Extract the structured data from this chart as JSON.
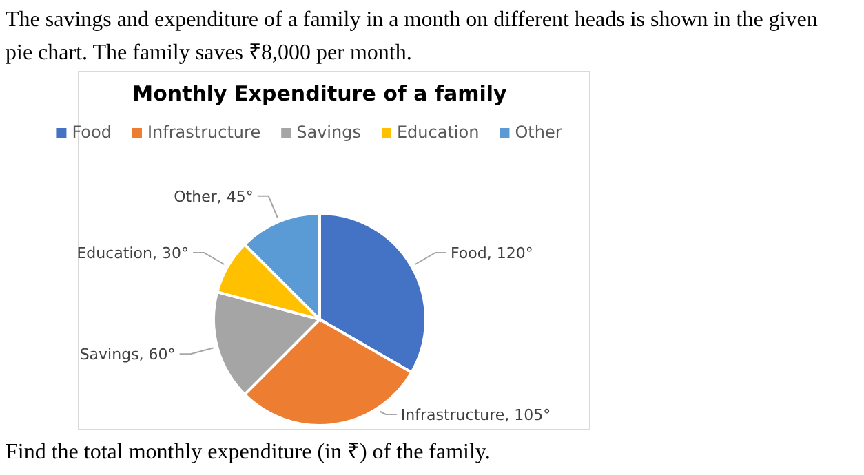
{
  "chart_data": {
    "type": "pie",
    "title": "Monthly Expenditure of a family",
    "categories": [
      "Food",
      "Infrastructure",
      "Savings",
      "Education",
      "Other"
    ],
    "values": [
      120,
      105,
      60,
      30,
      45
    ],
    "colors": [
      "#4472c4",
      "#ed7d31",
      "#a5a5a5",
      "#ffc000",
      "#5b9bd5"
    ],
    "value_labels": [
      "Food, 120°",
      "Infrastructure, 105°",
      "Savings, 60°",
      "Education, 30°",
      "Other, 45°"
    ],
    "legend": "top",
    "annotations": [
      "The savings and expenditure of a family in a month on different heads is shown in the given pie chart. The family saves ₹8,000 per month.",
      "Find the total monthly expenditure (in ₹) of the family."
    ]
  }
}
